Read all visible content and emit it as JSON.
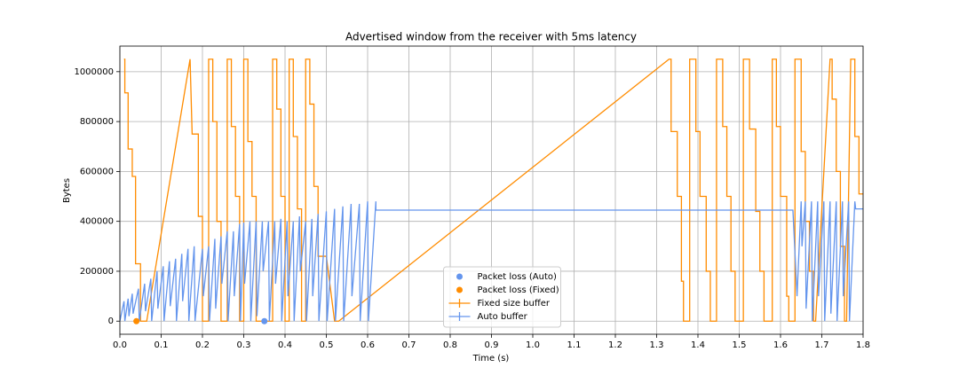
{
  "chart_data": {
    "type": "line",
    "title": "Advertised window from the receiver with 5ms latency",
    "xlabel": "Time (s)",
    "ylabel": "Bytes",
    "xlim": [
      0,
      1.8
    ],
    "ylim": [
      -52500,
      1102500
    ],
    "xticks": [
      {
        "value": 0,
        "label": "0.0"
      },
      0.1,
      0.2,
      0.3,
      0.4,
      0.5,
      0.6,
      0.7,
      0.8,
      0.9,
      {
        "value": 1,
        "label": "1.0"
      },
      1.1,
      1.2,
      1.3,
      1.4,
      1.5,
      1.6,
      1.7,
      1.8
    ],
    "yticks": [
      0,
      200000,
      400000,
      600000,
      800000,
      1000000
    ],
    "grid": true,
    "legend": "lower center",
    "markers": [
      {
        "name": "Packet loss (Auto)",
        "color": "#6495ed",
        "x": [
          0.35
        ],
        "values": [
          0
        ]
      },
      {
        "name": "Packet loss (Fixed)",
        "color": "#ff8c00",
        "x": [
          0.04
        ],
        "values": [
          0
        ]
      }
    ],
    "series": [
      {
        "name": "Fixed size buffer",
        "color": "#ff8c00",
        "x": [
          0.01,
          0.012,
          0.012,
          0.02,
          0.02,
          0.03,
          0.03,
          0.038,
          0.038,
          0.05,
          0.05,
          0.065,
          0.17,
          0.175,
          0.19,
          0.19,
          0.2,
          0.2,
          0.215,
          0.215,
          0.225,
          0.225,
          0.235,
          0.235,
          0.245,
          0.245,
          0.26,
          0.26,
          0.27,
          0.27,
          0.28,
          0.28,
          0.29,
          0.29,
          0.3,
          0.3,
          0.31,
          0.31,
          0.32,
          0.32,
          0.33,
          0.33,
          0.37,
          0.37,
          0.38,
          0.38,
          0.39,
          0.39,
          0.4,
          0.4,
          0.41,
          0.41,
          0.42,
          0.42,
          0.43,
          0.43,
          0.44,
          0.44,
          0.45,
          0.45,
          0.46,
          0.46,
          0.47,
          0.47,
          0.48,
          0.48,
          0.5,
          0.52,
          0.53,
          1.33,
          1.335,
          1.335,
          1.35,
          1.35,
          1.36,
          1.36,
          1.365,
          1.365,
          1.38,
          1.38,
          1.395,
          1.395,
          1.405,
          1.405,
          1.42,
          1.42,
          1.43,
          1.43,
          1.445,
          1.445,
          1.46,
          1.46,
          1.47,
          1.47,
          1.48,
          1.48,
          1.49,
          1.49,
          1.51,
          1.51,
          1.525,
          1.525,
          1.54,
          1.54,
          1.55,
          1.55,
          1.56,
          1.56,
          1.58,
          1.58,
          1.59,
          1.59,
          1.6,
          1.6,
          1.615,
          1.615,
          1.62,
          1.62,
          1.635,
          1.635,
          1.65,
          1.65,
          1.66,
          1.66,
          1.67,
          1.67,
          1.68,
          1.68,
          1.685,
          1.72,
          1.725,
          1.725,
          1.735,
          1.735,
          1.745,
          1.745,
          1.755,
          1.755,
          1.76,
          1.77,
          1.78,
          1.78,
          1.79,
          1.79,
          1.8
        ],
        "values": [
          1050000,
          1050000,
          915000,
          915000,
          690000,
          690000,
          580000,
          580000,
          230000,
          230000,
          0,
          0,
          1050000,
          750000,
          750000,
          420000,
          420000,
          0,
          0,
          1050000,
          1050000,
          800000,
          800000,
          400000,
          400000,
          0,
          0,
          1050000,
          1050000,
          780000,
          780000,
          500000,
          500000,
          0,
          0,
          1050000,
          1050000,
          720000,
          720000,
          500000,
          500000,
          0,
          0,
          1050000,
          1050000,
          850000,
          850000,
          500000,
          500000,
          0,
          0,
          1050000,
          1050000,
          740000,
          740000,
          450000,
          450000,
          0,
          0,
          1050000,
          1050000,
          870000,
          870000,
          540000,
          540000,
          260000,
          260000,
          0,
          0,
          1050000,
          1050000,
          760000,
          760000,
          500000,
          500000,
          160000,
          160000,
          0,
          0,
          1050000,
          1050000,
          760000,
          760000,
          500000,
          500000,
          200000,
          200000,
          0,
          0,
          1050000,
          1050000,
          780000,
          780000,
          500000,
          500000,
          200000,
          200000,
          0,
          0,
          1050000,
          1050000,
          770000,
          770000,
          440000,
          440000,
          200000,
          200000,
          0,
          0,
          1050000,
          1050000,
          780000,
          780000,
          500000,
          500000,
          100000,
          100000,
          0,
          0,
          1050000,
          1050000,
          680000,
          680000,
          400000,
          400000,
          200000,
          200000,
          0,
          0,
          1050000,
          1050000,
          890000,
          890000,
          600000,
          600000,
          300000,
          300000,
          0,
          0,
          1050000,
          1050000,
          740000,
          740000,
          510000,
          510000
        ]
      },
      {
        "name": "Auto buffer",
        "color": "#6495ed",
        "x": [
          0,
          0.01,
          0.012,
          0.02,
          0.022,
          0.03,
          0.032,
          0.045,
          0.047,
          0.06,
          0.062,
          0.075,
          0.077,
          0.09,
          0.092,
          0.105,
          0.107,
          0.12,
          0.122,
          0.135,
          0.137,
          0.15,
          0.152,
          0.165,
          0.167,
          0.18,
          0.182,
          0.2,
          0.202,
          0.215,
          0.217,
          0.23,
          0.232,
          0.245,
          0.247,
          0.26,
          0.262,
          0.275,
          0.277,
          0.29,
          0.292,
          0.3,
          0.302,
          0.315,
          0.317,
          0.33,
          0.332,
          0.345,
          0.347,
          0.36,
          0.362,
          0.375,
          0.377,
          0.39,
          0.392,
          0.405,
          0.407,
          0.42,
          0.422,
          0.435,
          0.437,
          0.45,
          0.452,
          0.465,
          0.467,
          0.48,
          0.482,
          0.5,
          0.502,
          0.52,
          0.522,
          0.54,
          0.542,
          0.56,
          0.562,
          0.58,
          0.582,
          0.6,
          0.602,
          0.62,
          0.62,
          1.63,
          1.64,
          1.65,
          1.652,
          1.66,
          1.662,
          1.675,
          1.677,
          1.69,
          1.692,
          1.705,
          1.707,
          1.72,
          1.722,
          1.735,
          1.737,
          1.75,
          1.752,
          1.765,
          1.767,
          1.78,
          1.782,
          1.8
        ],
        "values": [
          0,
          80000,
          0,
          90000,
          20000,
          110000,
          30000,
          130000,
          0,
          150000,
          40000,
          170000,
          0,
          200000,
          50000,
          220000,
          0,
          240000,
          60000,
          250000,
          0,
          270000,
          80000,
          290000,
          0,
          300000,
          0,
          290000,
          100000,
          300000,
          0,
          330000,
          50000,
          340000,
          150000,
          360000,
          0,
          360000,
          100000,
          390000,
          0,
          395000,
          150000,
          400000,
          0,
          400000,
          20000,
          400000,
          200000,
          400000,
          0,
          400000,
          150000,
          410000,
          0,
          400000,
          100000,
          400000,
          0,
          420000,
          200000,
          400000,
          0,
          410000,
          100000,
          430000,
          0,
          440000,
          0,
          450000,
          0,
          460000,
          0,
          470000,
          100000,
          470000,
          0,
          480000,
          0,
          480000,
          445000,
          445000,
          100000,
          480000,
          300000,
          480000,
          50000,
          480000,
          0,
          480000,
          100000,
          480000,
          0,
          480000,
          30000,
          480000,
          0,
          480000,
          100000,
          480000,
          0,
          480000,
          450000,
          450000
        ]
      }
    ]
  }
}
